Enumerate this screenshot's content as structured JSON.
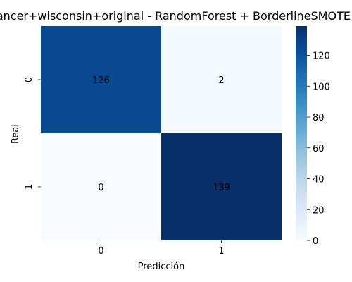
{
  "chart_data": {
    "type": "heatmap",
    "title": "cancer+wisconsin+original - RandomForest + BorderlineSMOTE",
    "xlabel": "Predicción",
    "ylabel": "Real",
    "x_categories": [
      "0",
      "1"
    ],
    "y_categories": [
      "0",
      "1"
    ],
    "values": [
      [
        126,
        2
      ],
      [
        0,
        139
      ]
    ],
    "colormap": "Blues",
    "colorbar": {
      "min": 0,
      "max": 139,
      "ticks": [
        0,
        20,
        40,
        60,
        80,
        100,
        120
      ]
    },
    "grid": false,
    "legend": "colorbar-right"
  }
}
